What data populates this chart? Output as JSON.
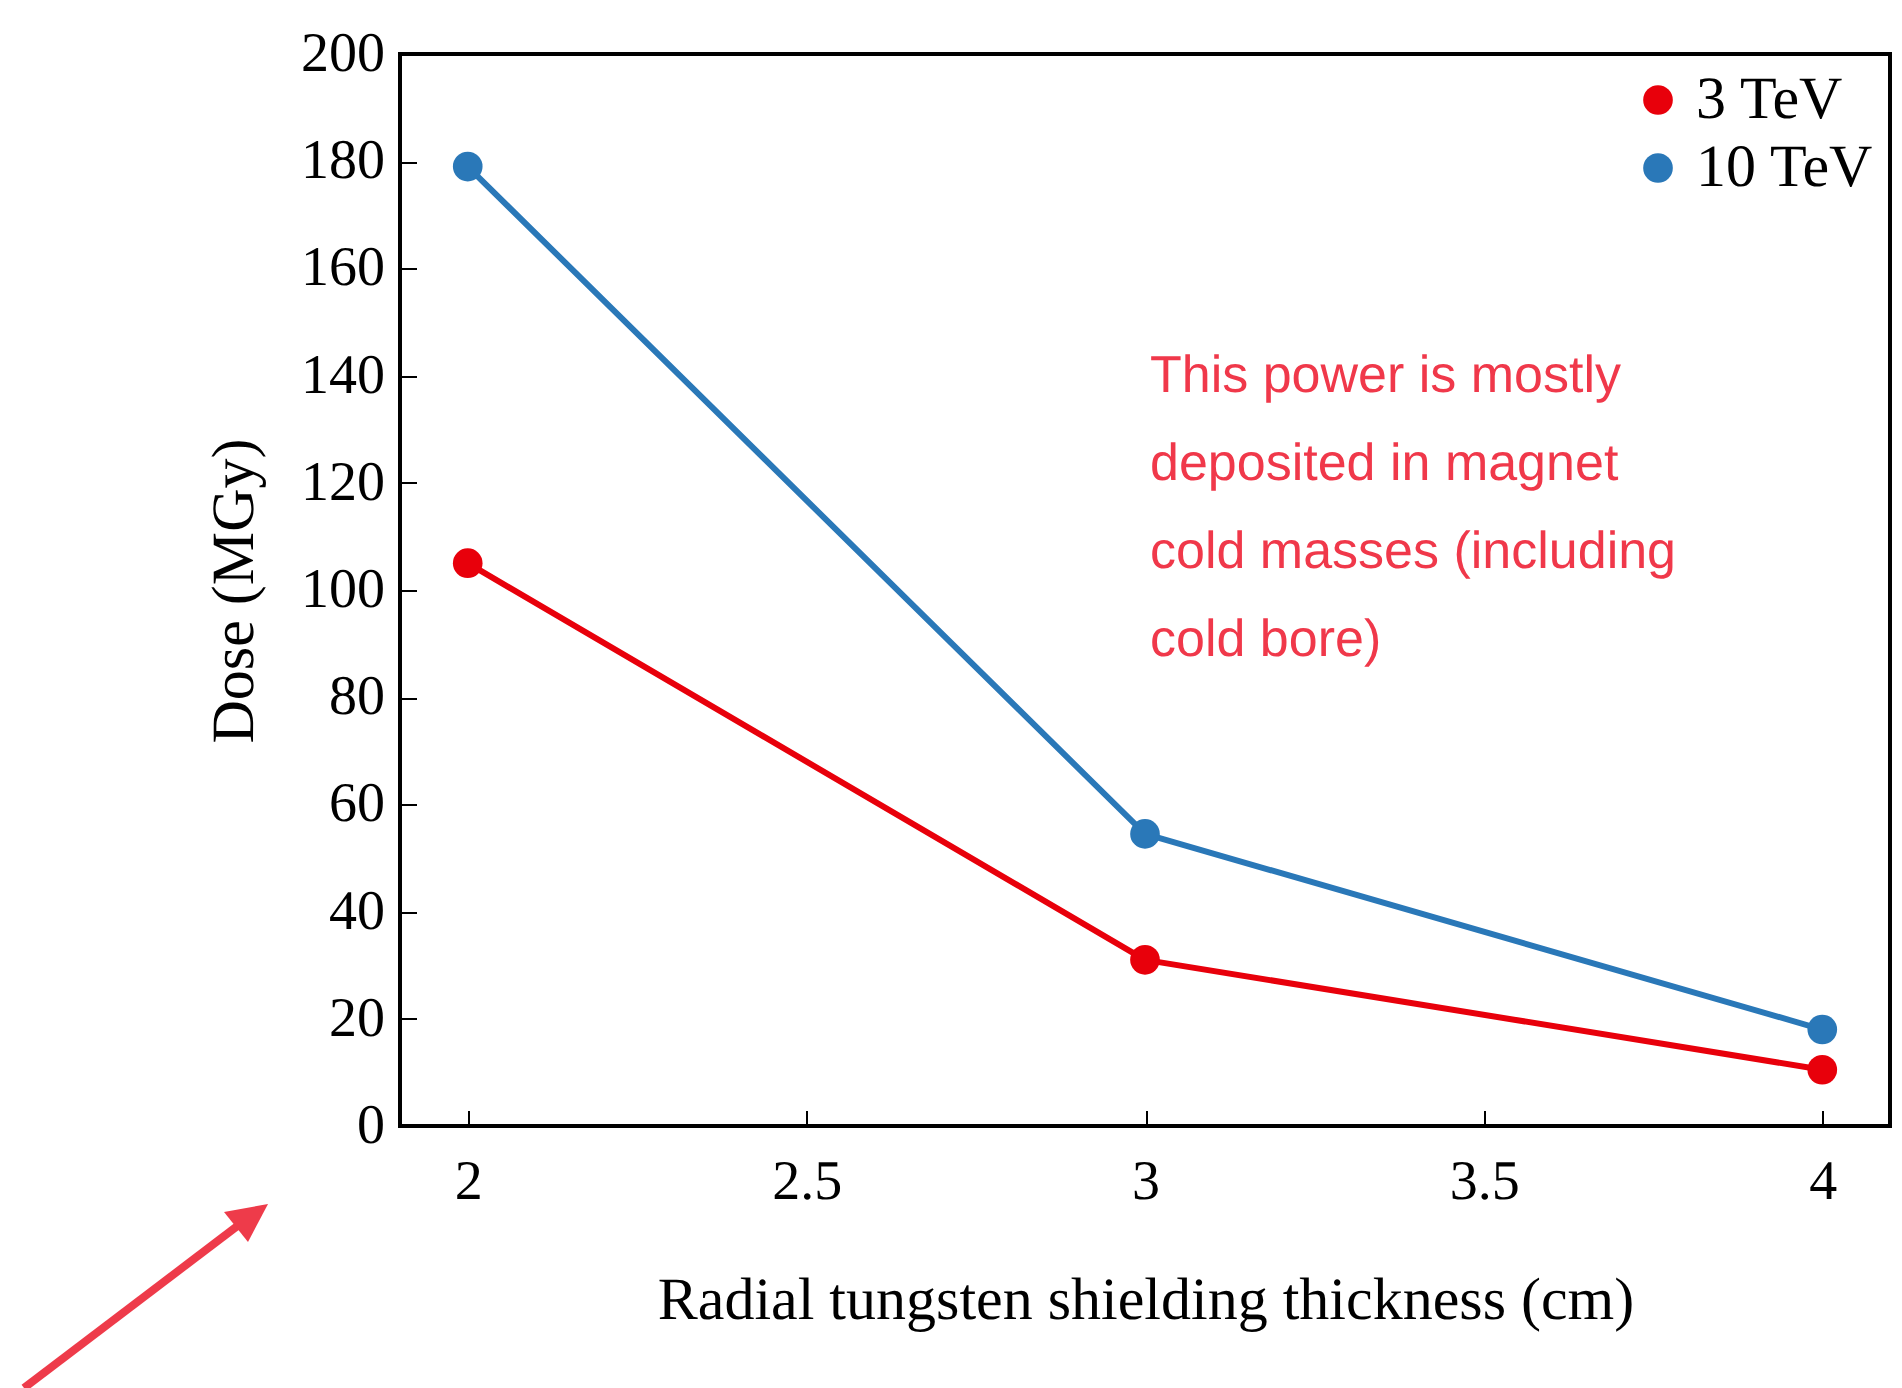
{
  "chart_data": {
    "type": "line",
    "xlabel": "Radial tungsten shielding thickness (cm)",
    "ylabel": "Dose (MGy)",
    "x": [
      2,
      3,
      4
    ],
    "series": [
      {
        "name": "3 TeV",
        "color": "#e8000b",
        "values": [
          105,
          31,
          10.5
        ]
      },
      {
        "name": "10 TeV",
        "color": "#2a78b8",
        "values": [
          179,
          54.5,
          18
        ]
      }
    ],
    "xlim": [
      1.9,
      4.1
    ],
    "xticks": [
      2,
      2.5,
      3,
      3.5,
      4
    ],
    "ylim": [
      0,
      200
    ],
    "yticks": [
      0,
      20,
      40,
      60,
      80,
      100,
      120,
      140,
      160,
      180,
      200
    ],
    "grid": false,
    "legend": "top right",
    "marker": "circle",
    "line_style": "solid",
    "annotations": [
      "This power is mostly deposited in magnet cold masses (including cold bore)"
    ]
  }
}
